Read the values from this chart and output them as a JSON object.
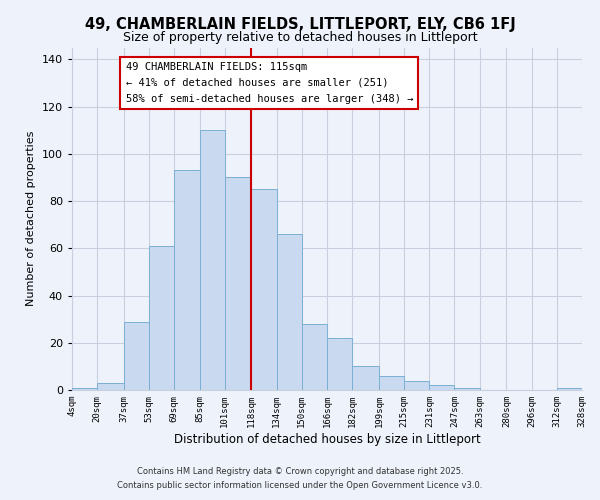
{
  "title": "49, CHAMBERLAIN FIELDS, LITTLEPORT, ELY, CB6 1FJ",
  "subtitle": "Size of property relative to detached houses in Littleport",
  "xlabel": "Distribution of detached houses by size in Littleport",
  "ylabel": "Number of detached properties",
  "bin_edges": [
    4,
    20,
    37,
    53,
    69,
    85,
    101,
    118,
    134,
    150,
    166,
    182,
    199,
    215,
    231,
    247,
    263,
    280,
    296,
    312,
    328
  ],
  "bar_heights": [
    1,
    3,
    29,
    61,
    93,
    110,
    90,
    85,
    66,
    28,
    22,
    10,
    6,
    4,
    2,
    1,
    0,
    0,
    0,
    1
  ],
  "bar_color": "#c9d9f0",
  "bar_edgecolor": "#7bafd4",
  "vline_x": 118,
  "vline_color": "#cc0000",
  "ylim": [
    0,
    145
  ],
  "annotation_title": "49 CHAMBERLAIN FIELDS: 115sqm",
  "annotation_line1": "← 41% of detached houses are smaller (251)",
  "annotation_line2": "58% of semi-detached houses are larger (348) →",
  "annotation_box_edgecolor": "#cc0000",
  "annotation_box_facecolor": "#ffffff",
  "footer1": "Contains HM Land Registry data © Crown copyright and database right 2025.",
  "footer2": "Contains public sector information licensed under the Open Government Licence v3.0.",
  "background_color": "#eef2fb",
  "title_fontsize": 10.5,
  "subtitle_fontsize": 9,
  "yticks": [
    0,
    20,
    40,
    60,
    80,
    100,
    120,
    140
  ],
  "tick_labels": [
    "4sqm",
    "20sqm",
    "37sqm",
    "53sqm",
    "69sqm",
    "85sqm",
    "101sqm",
    "118sqm",
    "134sqm",
    "150sqm",
    "166sqm",
    "182sqm",
    "199sqm",
    "215sqm",
    "231sqm",
    "247sqm",
    "263sqm",
    "280sqm",
    "296sqm",
    "312sqm",
    "328sqm"
  ],
  "grid_color": "#c8d0e0",
  "ann_fontsize": 7.5
}
